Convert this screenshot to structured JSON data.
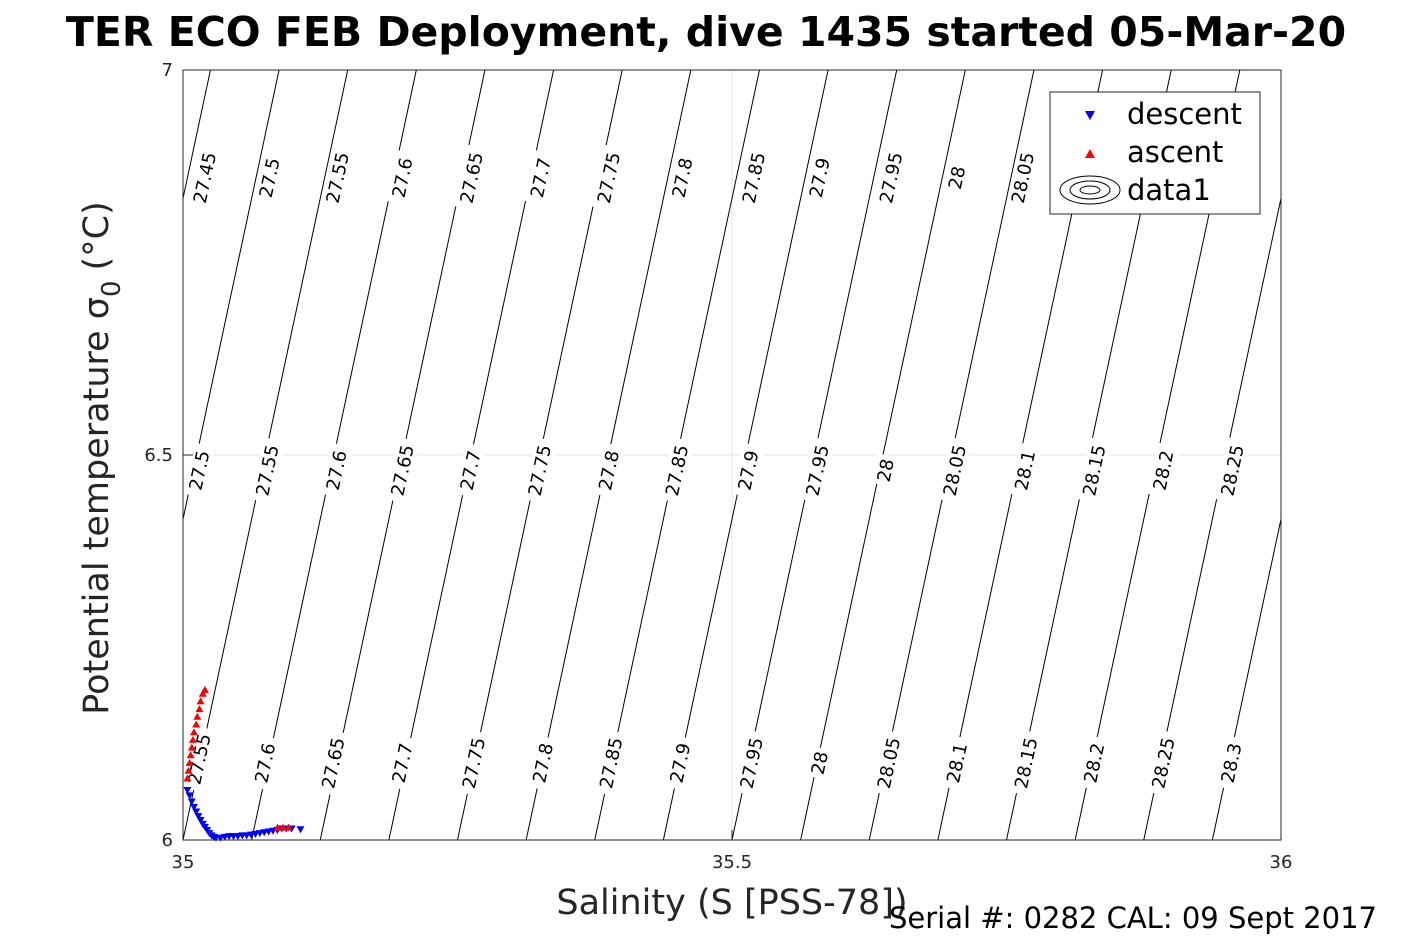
{
  "chart_data": {
    "type": "scatter",
    "title": "TER ECO FEB Deployment, dive 1435 started 05-Mar-20",
    "xlabel": "Salinity (S [PSS-78])",
    "ylabel_text": "Potential temperature σ",
    "ylabel_sub": "0",
    "ylabel_unit": "(°C)",
    "xlim": [
      35,
      36
    ],
    "ylim": [
      6,
      7
    ],
    "xticks": [
      "35",
      "35.5",
      "36"
    ],
    "xtick_values": [
      35,
      35.5,
      36
    ],
    "yticks": [
      "6",
      "6.5",
      "7"
    ],
    "ytick_values": [
      6,
      6.5,
      7
    ],
    "grid": true,
    "legend_position": "top-right",
    "legend": [
      {
        "name": "descent",
        "marker": "triangle-down",
        "color": "#0000ff"
      },
      {
        "name": "ascent",
        "marker": "triangle-up",
        "color": "#ff0000"
      },
      {
        "name": "data1",
        "marker": "contour"
      }
    ],
    "contour_levels": [
      27.45,
      27.5,
      27.55,
      27.6,
      27.65,
      27.7,
      27.75,
      27.8,
      27.85,
      27.9,
      27.95,
      28,
      28.05,
      28.1,
      28.15,
      28.2,
      28.25,
      28.3
    ],
    "contour_labels": [
      {
        "text": "27.45",
        "s": 35.02,
        "t": 6.86
      },
      {
        "text": "27.5",
        "s": 35.079,
        "t": 6.86
      },
      {
        "text": "27.55",
        "s": 35.141,
        "t": 6.86
      },
      {
        "text": "27.6",
        "s": 35.2,
        "t": 6.86
      },
      {
        "text": "27.65",
        "s": 35.263,
        "t": 6.86
      },
      {
        "text": "27.7",
        "s": 35.326,
        "t": 6.86
      },
      {
        "text": "27.75",
        "s": 35.388,
        "t": 6.86
      },
      {
        "text": "27.8",
        "s": 35.455,
        "t": 6.86
      },
      {
        "text": "27.85",
        "s": 35.52,
        "t": 6.86
      },
      {
        "text": "27.9",
        "s": 35.58,
        "t": 6.86
      },
      {
        "text": "27.95",
        "s": 35.645,
        "t": 6.86
      },
      {
        "text": "28",
        "s": 35.705,
        "t": 6.86
      },
      {
        "text": "28.05",
        "s": 35.765,
        "t": 6.86
      },
      {
        "text": "27.5",
        "s": 35.015,
        "t": 6.48
      },
      {
        "text": "27.55",
        "s": 35.077,
        "t": 6.48
      },
      {
        "text": "27.6",
        "s": 35.14,
        "t": 6.48
      },
      {
        "text": "27.65",
        "s": 35.2,
        "t": 6.48
      },
      {
        "text": "27.7",
        "s": 35.262,
        "t": 6.48
      },
      {
        "text": "27.75",
        "s": 35.325,
        "t": 6.48
      },
      {
        "text": "27.8",
        "s": 35.388,
        "t": 6.48
      },
      {
        "text": "27.85",
        "s": 35.45,
        "t": 6.48
      },
      {
        "text": "27.9",
        "s": 35.515,
        "t": 6.48
      },
      {
        "text": "27.95",
        "s": 35.578,
        "t": 6.48
      },
      {
        "text": "28",
        "s": 35.64,
        "t": 6.48
      },
      {
        "text": "28.05",
        "s": 35.703,
        "t": 6.48
      },
      {
        "text": "28.1",
        "s": 35.767,
        "t": 6.48
      },
      {
        "text": "28.15",
        "s": 35.83,
        "t": 6.48
      },
      {
        "text": "28.2",
        "s": 35.893,
        "t": 6.48
      },
      {
        "text": "28.25",
        "s": 35.956,
        "t": 6.48
      },
      {
        "text": "27.55",
        "s": 35.015,
        "t": 6.105
      },
      {
        "text": "27.6",
        "s": 35.075,
        "t": 6.1
      },
      {
        "text": "27.65",
        "s": 35.137,
        "t": 6.1
      },
      {
        "text": "27.7",
        "s": 35.2,
        "t": 6.1
      },
      {
        "text": "27.75",
        "s": 35.265,
        "t": 6.1
      },
      {
        "text": "27.8",
        "s": 35.328,
        "t": 6.1
      },
      {
        "text": "27.85",
        "s": 35.39,
        "t": 6.1
      },
      {
        "text": "27.9",
        "s": 35.453,
        "t": 6.1
      },
      {
        "text": "27.95",
        "s": 35.518,
        "t": 6.1
      },
      {
        "text": "28",
        "s": 35.58,
        "t": 6.1
      },
      {
        "text": "28.05",
        "s": 35.643,
        "t": 6.1
      },
      {
        "text": "28.1",
        "s": 35.705,
        "t": 6.1
      },
      {
        "text": "28.15",
        "s": 35.768,
        "t": 6.1
      },
      {
        "text": "28.2",
        "s": 35.83,
        "t": 6.1
      },
      {
        "text": "28.25",
        "s": 35.893,
        "t": 6.1
      },
      {
        "text": "28.3",
        "s": 35.955,
        "t": 6.1
      }
    ],
    "series": [
      {
        "name": "descent",
        "color": "#0000ff",
        "marker": "triangle-down",
        "points": [
          [
            35.004,
            6.065
          ],
          [
            35.006,
            6.058
          ],
          [
            35.008,
            6.05
          ],
          [
            35.01,
            6.043
          ],
          [
            35.012,
            6.037
          ],
          [
            35.014,
            6.031
          ],
          [
            35.016,
            6.026
          ],
          [
            35.018,
            6.021
          ],
          [
            35.02,
            6.017
          ],
          [
            35.022,
            6.013
          ],
          [
            35.024,
            6.009
          ],
          [
            35.026,
            6.006
          ],
          [
            35.028,
            6.004
          ],
          [
            35.03,
            6.003
          ],
          [
            35.034,
            6.003
          ],
          [
            35.038,
            6.004
          ],
          [
            35.042,
            6.005
          ],
          [
            35.046,
            6.005
          ],
          [
            35.05,
            6.005
          ],
          [
            35.054,
            6.006
          ],
          [
            35.058,
            6.006
          ],
          [
            35.062,
            6.007
          ],
          [
            35.066,
            6.008
          ],
          [
            35.07,
            6.009
          ],
          [
            35.074,
            6.01
          ],
          [
            35.078,
            6.011
          ],
          [
            35.082,
            6.012
          ],
          [
            35.086,
            6.013
          ],
          [
            35.09,
            6.015
          ],
          [
            35.094,
            6.015
          ],
          [
            35.099,
            6.015
          ],
          [
            35.107,
            6.014
          ]
        ]
      },
      {
        "name": "ascent",
        "color": "#ff0000",
        "marker": "triangle-up",
        "points": [
          [
            35.004,
            6.08
          ],
          [
            35.005,
            6.09
          ],
          [
            35.006,
            6.1
          ],
          [
            35.007,
            6.11
          ],
          [
            35.008,
            6.12
          ],
          [
            35.009,
            6.13
          ],
          [
            35.01,
            6.14
          ],
          [
            35.012,
            6.15
          ],
          [
            35.013,
            6.16
          ],
          [
            35.015,
            6.17
          ],
          [
            35.016,
            6.18
          ],
          [
            35.018,
            6.19
          ],
          [
            35.02,
            6.195
          ],
          [
            35.086,
            6.016
          ],
          [
            35.091,
            6.016
          ],
          [
            35.096,
            6.016
          ]
        ]
      }
    ]
  },
  "footer": {
    "serial": "Serial #: 0282  CAL: 09 Sept 2017"
  }
}
